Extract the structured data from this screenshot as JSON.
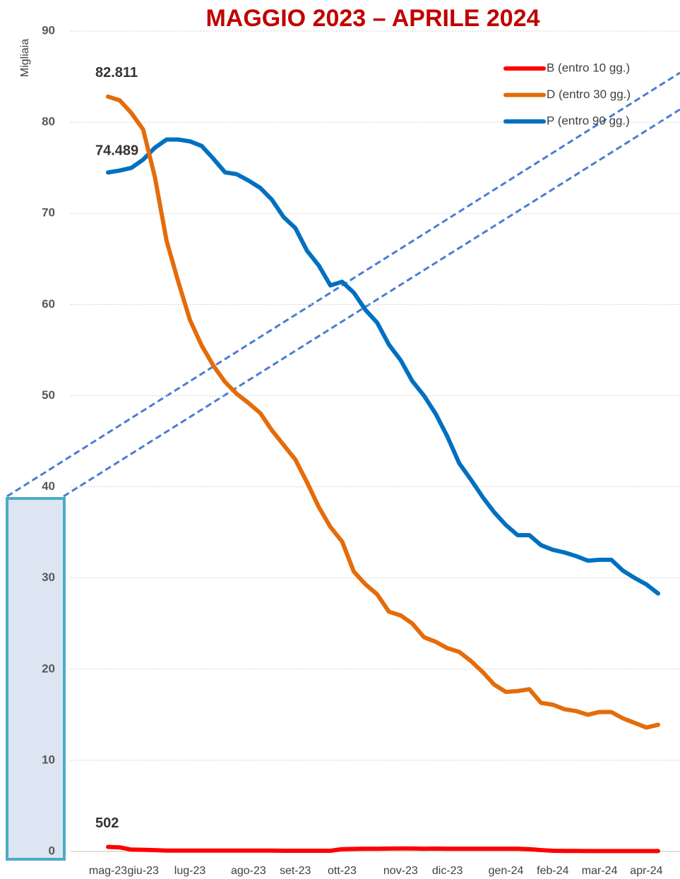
{
  "chart_data": {
    "type": "line",
    "title": "MAGGIO 2023 – APRILE 2024",
    "y_label": "Migliaia",
    "categories": [
      "mag-23",
      null,
      null,
      "giu-23",
      null,
      null,
      null,
      "lug-23",
      null,
      null,
      null,
      null,
      "ago-23",
      null,
      null,
      null,
      "set-23",
      null,
      null,
      null,
      "ott-23",
      null,
      null,
      null,
      null,
      "nov-23",
      null,
      null,
      null,
      "dic-23",
      null,
      null,
      null,
      null,
      "gen-24",
      null,
      null,
      null,
      "feb-24",
      null,
      null,
      null,
      "mar-24",
      null,
      null,
      null,
      "apr-24",
      null
    ],
    "series": [
      {
        "name": "B (entro 10 gg.)",
        "color": "#ff0000",
        "values": [
          0.502,
          0.45,
          0.2,
          0.18,
          0.15,
          0.1,
          0.1,
          0.1,
          0.1,
          0.1,
          0.1,
          0.1,
          0.1,
          0.1,
          0.1,
          0.08,
          0.08,
          0.08,
          0.08,
          0.08,
          0.25,
          0.28,
          0.3,
          0.3,
          0.32,
          0.33,
          0.33,
          0.3,
          0.32,
          0.3,
          0.3,
          0.3,
          0.3,
          0.3,
          0.3,
          0.3,
          0.25,
          0.15,
          0.08,
          0.06,
          0.06,
          0.05,
          0.05,
          0.05,
          0.05,
          0.05,
          0.05,
          0.05
        ],
        "value_labels": [
          "502",
          null,
          null,
          null,
          null,
          null,
          null,
          null,
          null,
          null,
          null,
          null,
          null,
          null,
          null,
          null,
          null,
          null,
          null,
          null,
          null,
          null,
          null,
          null,
          null,
          null,
          null,
          null,
          null,
          null,
          null,
          null,
          null,
          null,
          null,
          null,
          null,
          null,
          null,
          null,
          null,
          null,
          null,
          null,
          null,
          null,
          null,
          null
        ]
      },
      {
        "name": "D (entro 30 gg.)",
        "color": "#e46c0a",
        "values": [
          82.811,
          82.4,
          81,
          79.2,
          74,
          67,
          62.5,
          58.3,
          55.5,
          53.3,
          51.5,
          50.2,
          49.2,
          48.1,
          46.2,
          44.6,
          43,
          40.5,
          37.8,
          35.6,
          34,
          30.7,
          29.3,
          28.2,
          26.3,
          25.9,
          25,
          23.5,
          23,
          22.3,
          21.9,
          20.9,
          19.7,
          18.3,
          17.5,
          17.6,
          17.8,
          16.3,
          16.1,
          15.6,
          15.4,
          15,
          15.3,
          15.3,
          14.6,
          14.1,
          13.6,
          13.9
        ],
        "value_labels": [
          "82.811",
          null,
          null,
          null,
          null,
          null,
          null,
          null,
          null,
          null,
          null,
          null,
          null,
          null,
          null,
          null,
          null,
          null,
          null,
          null,
          null,
          null,
          null,
          null,
          null,
          null,
          null,
          null,
          null,
          null,
          null,
          null,
          null,
          null,
          null,
          null,
          null,
          null,
          null,
          null,
          null,
          null,
          null,
          null,
          null,
          null,
          null,
          null
        ]
      },
      {
        "name": "P (entro 90 gg.)",
        "color": "#0070c0",
        "values": [
          74.489,
          74.7,
          75,
          75.9,
          77.2,
          78.1,
          78.1,
          77.9,
          77.4,
          76,
          74.5,
          74.3,
          73.6,
          72.8,
          71.5,
          69.6,
          68.4,
          65.9,
          64.3,
          62.1,
          62.5,
          61.3,
          59.4,
          58,
          55.6,
          53.9,
          51.6,
          50,
          48,
          45.5,
          42.6,
          40.8,
          38.9,
          37.2,
          35.8,
          34.7,
          34.7,
          33.6,
          33.1,
          32.8,
          32.4,
          31.9,
          32,
          32,
          30.8,
          30,
          29.3,
          28.3
        ],
        "value_labels": [
          "74.489",
          null,
          null,
          null,
          null,
          null,
          null,
          null,
          null,
          null,
          null,
          null,
          null,
          null,
          null,
          null,
          null,
          null,
          null,
          null,
          null,
          null,
          null,
          null,
          null,
          null,
          null,
          null,
          null,
          null,
          null,
          null,
          null,
          null,
          null,
          null,
          null,
          null,
          null,
          null,
          null,
          null,
          null,
          null,
          null,
          null,
          null,
          null
        ]
      }
    ],
    "ylim": [
      0,
      90
    ],
    "yticks": [
      0,
      10,
      20,
      30,
      40,
      50,
      60,
      70,
      80,
      90
    ],
    "grid": true,
    "legend": "top-right"
  }
}
